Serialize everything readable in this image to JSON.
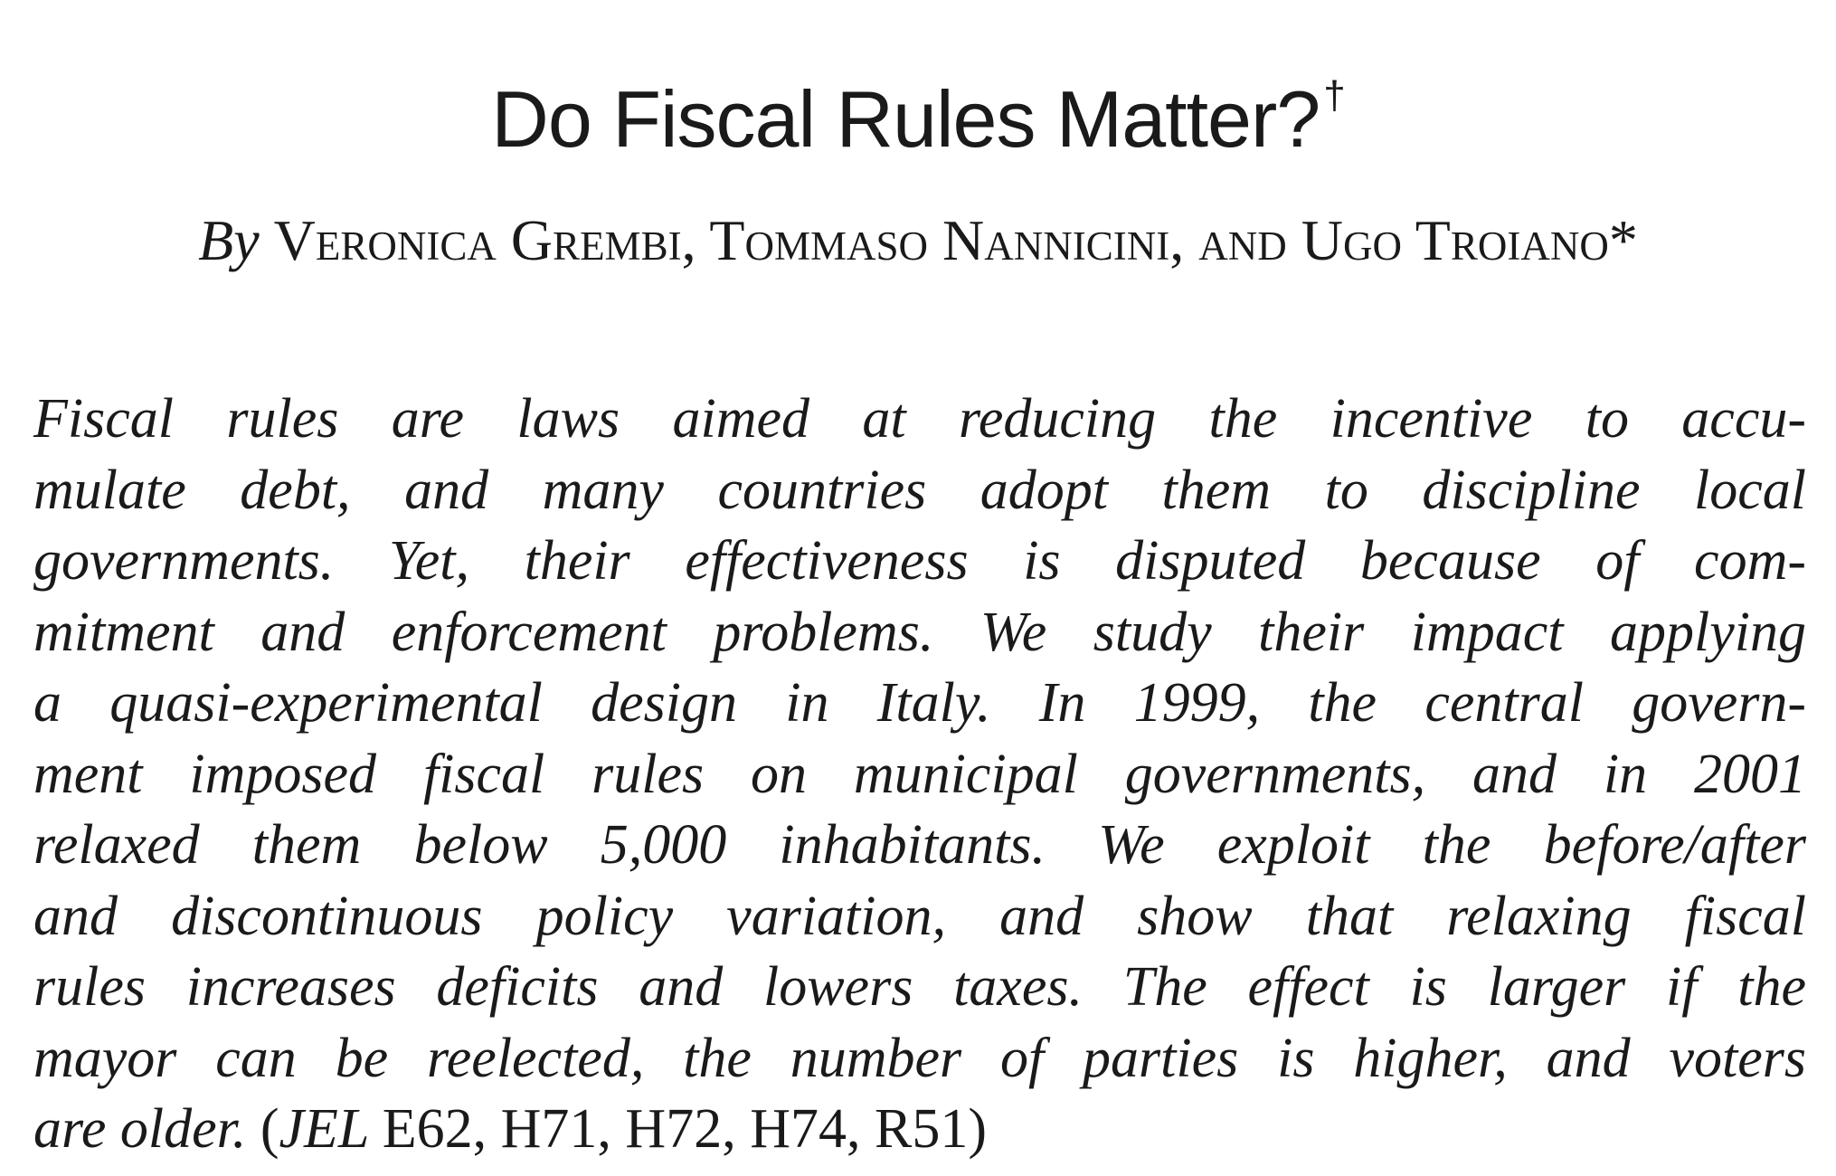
{
  "title": "Do Fiscal Rules Matter?",
  "title_mark": "†",
  "byline": {
    "by": "By",
    "authors": "Veronica Grembi, Tommaso Nannicini, and Ugo Troiano",
    "mark": "*"
  },
  "abstract": {
    "lines": [
      "Fiscal rules are laws aimed at reducing the incentive to accu-",
      "mulate debt, and many countries adopt them to discipline local",
      "governments. Yet, their effectiveness is disputed because of com-",
      "mitment and enforcement problems. We study their impact applying",
      "a quasi-experimental design in Italy. In 1999, the central govern-",
      "ment imposed fiscal rules on municipal governments, and in 2001",
      "relaxed them below 5,000 inhabitants. We exploit the before/after",
      "and discontinuous policy variation, and show that relaxing fiscal",
      "rules increases deficits and lowers taxes. The effect is larger if the",
      "mayor can be reelected, the number of parties is higher, and voters"
    ],
    "last_line_italic": "are older.",
    "jel_open": "(",
    "jel_label": "JEL",
    "jel_codes": "E62, H71, H72, H74, R51",
    "jel_close": ")"
  }
}
